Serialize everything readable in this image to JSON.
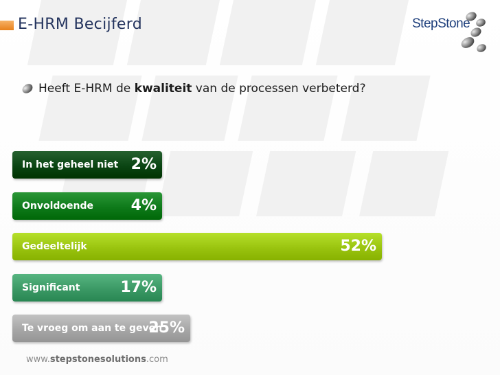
{
  "header": {
    "title": "E-HRM Becijferd",
    "logo_text": "StepStone",
    "logo_icon": "stepstone-stones-icon"
  },
  "question": {
    "bullet_icon": "stone-bullet-icon",
    "before": "Heeft E-HRM de ",
    "emphasis": "kwaliteit",
    "after": " van de processen verbeterd?"
  },
  "chart_data": {
    "type": "bar",
    "orientation": "horizontal",
    "categories": [
      "In het geheel niet",
      "Onvoldoende",
      "Gedeeltelijk",
      "Significant",
      "Te vroeg om aan te geven"
    ],
    "values": [
      2,
      4,
      52,
      17,
      25
    ],
    "value_labels": [
      "2%",
      "4%",
      "52%",
      "17%",
      "25%"
    ],
    "unit": "%",
    "colors": [
      "#0a4513",
      "#0e7a1a",
      "#9ac40f",
      "#3b9965",
      "#a7a7a7"
    ],
    "value_text_colors": [
      "#ffffff",
      "#ffffff",
      "#ffffff",
      "#ffffff",
      "#ffffff"
    ],
    "grid": false,
    "legend": "none"
  },
  "footer": {
    "prefix": "www.",
    "domain": "stepstonesolutions",
    "suffix": ".com"
  }
}
